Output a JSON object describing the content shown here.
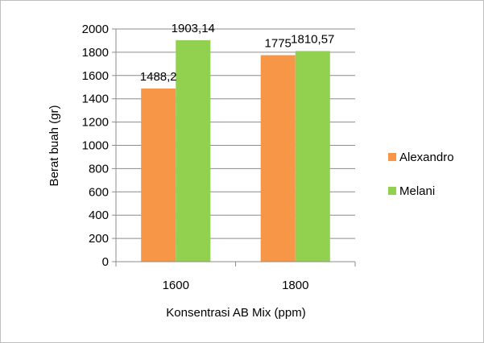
{
  "chart_data": {
    "type": "bar",
    "title": "",
    "xlabel": "Konsentrasi AB Mix (ppm)",
    "ylabel": "Berat buah  (gr)",
    "categories": [
      "1600",
      "1800"
    ],
    "series": [
      {
        "name": "Alexandro",
        "values": [
          1488.2,
          1775
        ],
        "labels": [
          "1488,2",
          "1775"
        ],
        "color": "#f79646"
      },
      {
        "name": "Melani",
        "values": [
          1903.14,
          1810.57
        ],
        "labels": [
          "1903,14",
          "1810,57"
        ],
        "color": "#92d050"
      }
    ],
    "ylim": [
      0,
      2000
    ],
    "yticks": [
      "0",
      "200",
      "400",
      "600",
      "800",
      "1000",
      "1200",
      "1400",
      "1600",
      "1800",
      "2000"
    ],
    "grid": true,
    "legend_position": "right"
  }
}
